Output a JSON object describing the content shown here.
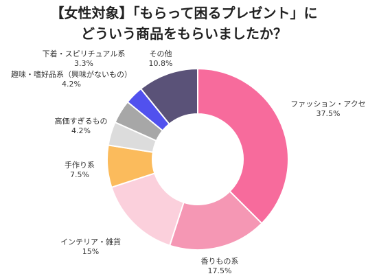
{
  "title_line1": "【女性対象】「もらって困るプレゼント」に",
  "title_line2": "どういう商品をもらいましたか？",
  "chart_data": {
    "type": "pie",
    "variant": "donut",
    "title": "【女性対象】「もらって困るプレゼント」に どういう商品をもらいましたか？",
    "slices": [
      {
        "label": "ファッション・アクセ",
        "value": 37.5,
        "value_label": "37.5%",
        "color": "#f76b9c"
      },
      {
        "label": "香りもの系",
        "value": 17.5,
        "value_label": "17.5%",
        "color": "#f597b4"
      },
      {
        "label": "インテリア・雑貨",
        "value": 15,
        "value_label": "15%",
        "color": "#fbd0dc"
      },
      {
        "label": "手作り系",
        "value": 7.5,
        "value_label": "7.5%",
        "color": "#fbbb5c"
      },
      {
        "label": "高価すぎるもの",
        "value": 4.2,
        "value_label": "4.2%",
        "color": "#dcdcdc"
      },
      {
        "label": "趣味・嗜好品系（興味がないもの）",
        "value": 4.2,
        "value_label": "4.2%",
        "color": "#a7a7a7"
      },
      {
        "label": "下着・スピリチュアル系",
        "value": 3.3,
        "value_label": "3.3%",
        "color": "#5151ee"
      },
      {
        "label": "その他",
        "value": 10.8,
        "value_label": "10.8%",
        "color": "#5a5278"
      }
    ]
  }
}
